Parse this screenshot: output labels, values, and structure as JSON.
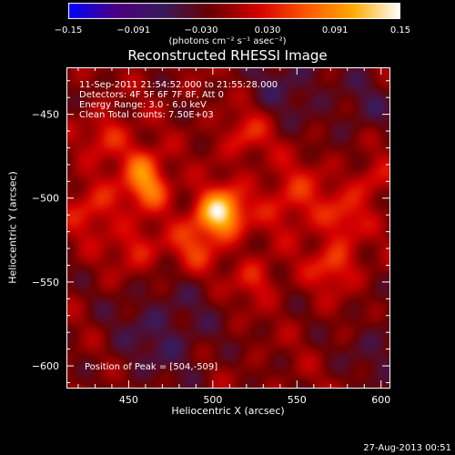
{
  "chart_data": {
    "type": "heatmap",
    "title": "Reconstructed RHESSI Image",
    "xlabel": "Heliocentric X (arcsec)",
    "ylabel": "Heliocentric Y (arcsec)",
    "xlim": [
      413,
      605
    ],
    "ylim": [
      -613,
      -422
    ],
    "x_ticks": [
      450,
      500,
      550,
      600
    ],
    "x_tick_labels": [
      "450",
      "500",
      "550",
      "600"
    ],
    "y_ticks": [
      -450,
      -500,
      -550,
      -600
    ],
    "y_tick_labels": [
      "−450",
      "−500",
      "−550",
      "−600"
    ],
    "colorbar": {
      "range": [
        -0.15,
        0.15
      ],
      "ticks": [
        -0.15,
        -0.091,
        -0.03,
        0.03,
        0.091,
        0.15
      ],
      "tick_labels": [
        "−0.15",
        "−0.091",
        "−0.030",
        "0.030",
        "0.091",
        "0.15"
      ],
      "units_label": "(photons cm⁻² s⁻¹ asec⁻²)",
      "colors": [
        "#0000ff",
        "#4b0082",
        "#3a1a5a",
        "#6b0000",
        "#d40000",
        "#ff5500",
        "#ffaa00",
        "#ffffff"
      ]
    },
    "peak": {
      "x": 504,
      "y": -509
    },
    "sources": [
      {
        "x": 504,
        "y": -509,
        "sigma": 10,
        "amp": 0.15
      },
      {
        "x": 462,
        "y": -493,
        "sigma": 9,
        "amp": 0.09
      },
      {
        "x": 457,
        "y": -478,
        "sigma": 8,
        "amp": 0.06
      },
      {
        "x": 438,
        "y": -462,
        "sigma": 9,
        "amp": 0.05
      },
      {
        "x": 430,
        "y": -505,
        "sigma": 12,
        "amp": 0.05
      },
      {
        "x": 455,
        "y": -530,
        "sigma": 10,
        "amp": 0.045
      },
      {
        "x": 520,
        "y": -462,
        "sigma": 10,
        "amp": 0.05
      },
      {
        "x": 548,
        "y": -500,
        "sigma": 14,
        "amp": 0.05
      },
      {
        "x": 578,
        "y": -512,
        "sigma": 10,
        "amp": 0.045
      },
      {
        "x": 572,
        "y": -540,
        "sigma": 10,
        "amp": 0.06
      },
      {
        "x": 525,
        "y": -548,
        "sigma": 9,
        "amp": 0.045
      },
      {
        "x": 595,
        "y": -490,
        "sigma": 9,
        "amp": 0.04
      },
      {
        "x": 488,
        "y": -530,
        "sigma": 11,
        "amp": 0.05
      },
      {
        "x": 470,
        "y": -580,
        "sigma": 22,
        "amp": -0.04
      },
      {
        "x": 545,
        "y": -430,
        "sigma": 18,
        "amp": -0.035
      },
      {
        "x": 590,
        "y": -445,
        "sigma": 14,
        "amp": -0.03
      },
      {
        "x": 600,
        "y": -590,
        "sigma": 16,
        "amp": -0.03
      }
    ]
  },
  "annotations": {
    "time_range": "11-Sep-2011 21:54:52.000 to 21:55:28.000",
    "detectors": "Detectors: 4F 5F 6F 7F 8F, Att 0",
    "energy_range": "Energy Range: 3.0 - 6.0 keV",
    "method_counts": "Clean     Total counts: 7.50E+03",
    "peak_position": "Position of Peak = [504,-509]"
  },
  "footer": {
    "date": "27-Aug-2013 00:51"
  }
}
